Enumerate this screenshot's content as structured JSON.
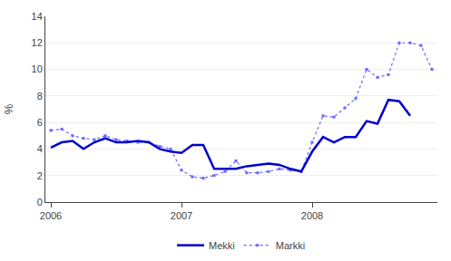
{
  "chart_data": {
    "type": "line",
    "categories": [
      "2006",
      null,
      null,
      null,
      null,
      null,
      null,
      null,
      null,
      null,
      null,
      null,
      "2007",
      null,
      null,
      null,
      null,
      null,
      null,
      null,
      null,
      null,
      null,
      null,
      "2008",
      null,
      null,
      null,
      null,
      null,
      null,
      null,
      null,
      null,
      null,
      null
    ],
    "series": [
      {
        "name": "Mekki",
        "color": "#0000CC",
        "line_style": "solid",
        "values": [
          4.1,
          4.5,
          4.6,
          4.0,
          4.5,
          4.8,
          4.5,
          4.5,
          4.6,
          4.5,
          4.0,
          3.8,
          3.7,
          4.3,
          4.3,
          2.5,
          2.5,
          2.5,
          2.7,
          2.8,
          2.9,
          2.8,
          2.5,
          2.3,
          3.8,
          4.9,
          4.5,
          4.9,
          4.9,
          6.1,
          5.9,
          7.7,
          7.6,
          6.5,
          null,
          null
        ]
      },
      {
        "name": "Markki",
        "color": "#6666FF",
        "line_style": "dotted",
        "marker": "square",
        "values": [
          5.4,
          5.5,
          5.0,
          4.8,
          4.7,
          5.0,
          4.7,
          4.6,
          4.5,
          4.5,
          4.2,
          4.0,
          2.4,
          1.9,
          1.8,
          2.0,
          2.3,
          3.1,
          2.2,
          2.2,
          2.3,
          2.5,
          2.4,
          2.3,
          4.5,
          6.5,
          6.4,
          7.1,
          7.8,
          10.0,
          9.4,
          9.6,
          12.0,
          12.0,
          11.8,
          10.0
        ]
      }
    ],
    "ylabel": "%",
    "ylim": [
      0,
      14
    ],
    "yticks": [
      0,
      2,
      4,
      6,
      8,
      10,
      12,
      14
    ],
    "grid": true,
    "legend": "bottom"
  }
}
